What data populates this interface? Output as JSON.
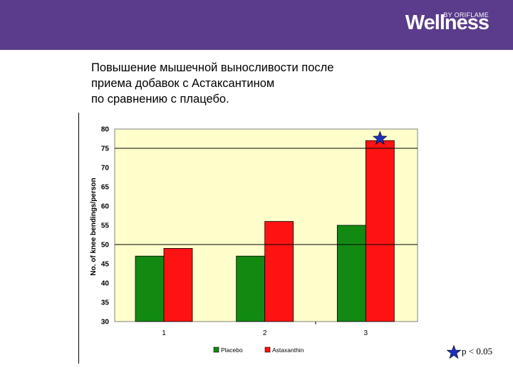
{
  "header": {
    "brand": "Wellness",
    "brand_sub": "BY ORIFLAME"
  },
  "title": {
    "line1": "Повышение мышечной выносливости после",
    "line2": "приема добавок с Астаксантином",
    "line3": "по сравнению с плацебо."
  },
  "footnote": {
    "text": "p < 0.05",
    "icon": "star-icon",
    "star_color": "#1f2fbf"
  },
  "chart_data": {
    "type": "bar",
    "categories": [
      "1",
      "2",
      "3"
    ],
    "series": [
      {
        "name": "Placebo",
        "color": "#128a12",
        "values": [
          47,
          47,
          55
        ]
      },
      {
        "name": "Astaxanthin",
        "color": "#ff1212",
        "values": [
          49,
          56,
          77
        ]
      }
    ],
    "ylabel": "No. of knee bendings/person",
    "xlabel": "",
    "ylim": [
      30,
      80
    ],
    "yticks": [
      "30",
      "35",
      "40",
      "45",
      "50",
      "55",
      "60",
      "65",
      "70",
      "75",
      "80"
    ],
    "reference_lines": [
      50,
      75
    ],
    "plot_background": "#ffffcc",
    "legend_position": "bottom",
    "grid": false,
    "significance_marker": {
      "category": "3",
      "series": "Astaxanthin",
      "symbol": "star-icon"
    }
  }
}
